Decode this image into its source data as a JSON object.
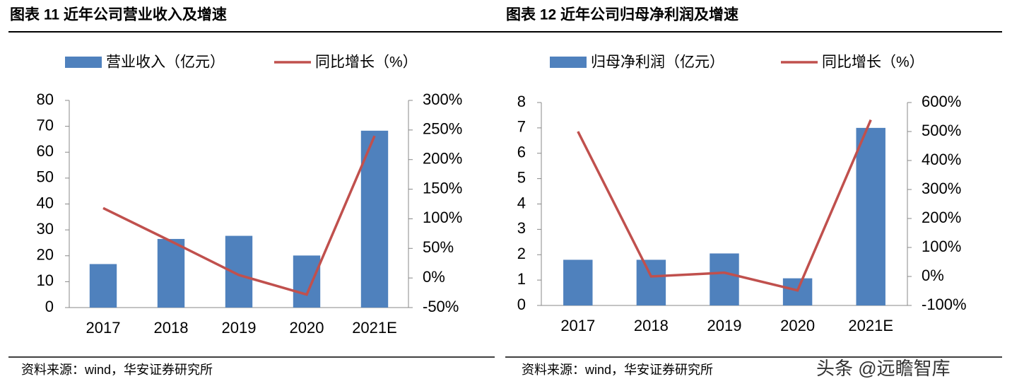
{
  "chart_data": [
    {
      "type": "bar",
      "title": "图表 11 近年公司营业收入及增速",
      "categories": [
        "2017",
        "2018",
        "2019",
        "2020",
        "2021E"
      ],
      "series": [
        {
          "name": "营业收入（亿元）",
          "color": "#4f81bd",
          "values": [
            16.8,
            26.5,
            27.7,
            20.1,
            68.3
          ]
        },
        {
          "name": "同比增长（%）",
          "color": "#c0504d",
          "axis": "y2",
          "type": "line",
          "values": [
            118,
            62,
            5,
            -28,
            240
          ]
        }
      ],
      "ylim": [
        0,
        80
      ],
      "yticks": [
        0,
        10,
        20,
        30,
        40,
        50,
        60,
        70,
        80
      ],
      "y2lim": [
        -50,
        300
      ],
      "y2ticks": [
        {
          "value": -50,
          "label": "-50%"
        },
        {
          "value": 0,
          "label": "0%"
        },
        {
          "value": 50,
          "label": "50%"
        },
        {
          "value": 100,
          "label": "100%"
        },
        {
          "value": 150,
          "label": "150%"
        },
        {
          "value": 200,
          "label": "200%"
        },
        {
          "value": 250,
          "label": "250%"
        },
        {
          "value": 300,
          "label": "300%"
        }
      ],
      "source": "资料来源：wind，华安证券研究所"
    },
    {
      "type": "bar",
      "title": "图表 12 近年公司归母净利润及增速",
      "categories": [
        "2017",
        "2018",
        "2019",
        "2020",
        "2021E"
      ],
      "series": [
        {
          "name": "归母净利润（亿元）",
          "color": "#4f81bd",
          "values": [
            1.8,
            1.8,
            2.05,
            1.07,
            7.0
          ]
        },
        {
          "name": "同比增长（%）",
          "color": "#c0504d",
          "axis": "y2",
          "type": "line",
          "values": [
            500,
            0,
            13,
            -48,
            540
          ]
        }
      ],
      "ylim": [
        0,
        8
      ],
      "yticks": [
        0,
        1,
        2,
        3,
        4,
        5,
        6,
        7,
        8
      ],
      "y2lim": [
        -100,
        600
      ],
      "y2ticks": [
        {
          "value": -100,
          "label": "-100%"
        },
        {
          "value": 0,
          "label": "0%"
        },
        {
          "value": 100,
          "label": "100%"
        },
        {
          "value": 200,
          "label": "200%"
        },
        {
          "value": 300,
          "label": "300%"
        },
        {
          "value": 400,
          "label": "400%"
        },
        {
          "value": 500,
          "label": "500%"
        },
        {
          "value": 600,
          "label": "600%"
        }
      ],
      "source": "资料来源：wind，华安证券研究所"
    }
  ],
  "watermark": "头条 @远瞻智库"
}
